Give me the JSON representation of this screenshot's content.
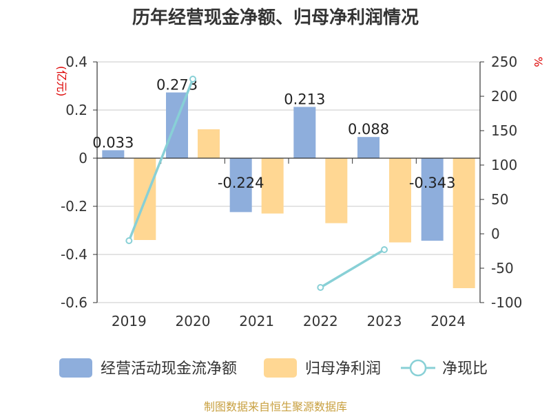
{
  "title": "历年经营现金净额、归母净利润情况",
  "source": "制图数据来自恒生聚源数据库",
  "colors": {
    "cash": "#8eaedc",
    "profit": "#ffd793",
    "ratio": "#88d0d6",
    "unit": "#dd0000",
    "grid": "#c8c8c8",
    "axis": "#333333"
  },
  "chart_data": {
    "type": "bar",
    "categories": [
      "2019",
      "2020",
      "2021",
      "2022",
      "2023",
      "2024"
    ],
    "left_axis": {
      "unit": "(亿元)",
      "ticks": [
        "0.4",
        "0.2",
        "0",
        "-0.2",
        "-0.4",
        "-0.6"
      ],
      "ylim": [
        -0.6,
        0.4
      ]
    },
    "right_axis": {
      "unit": "%",
      "ticks": [
        "250",
        "200",
        "150",
        "100",
        "50",
        "0",
        "-50",
        "-100"
      ],
      "ylim": [
        -100,
        250
      ]
    },
    "series": [
      {
        "name": "经营活动现金流净额",
        "type": "bar",
        "axis": "left",
        "values": [
          0.033,
          0.273,
          -0.224,
          0.213,
          0.088,
          -0.343
        ],
        "labels": [
          "0.033",
          "0.273",
          "-0.224",
          "0.213",
          "0.088",
          "-0.343"
        ]
      },
      {
        "name": "归母净利润",
        "type": "bar",
        "axis": "left",
        "values": [
          -0.34,
          0.12,
          -0.23,
          -0.27,
          -0.35,
          -0.54
        ]
      },
      {
        "name": "净现比",
        "type": "line",
        "axis": "right",
        "values": [
          -10,
          225,
          null,
          -78,
          -23,
          null
        ]
      }
    ],
    "grid": true,
    "legend_position": "bottom"
  }
}
